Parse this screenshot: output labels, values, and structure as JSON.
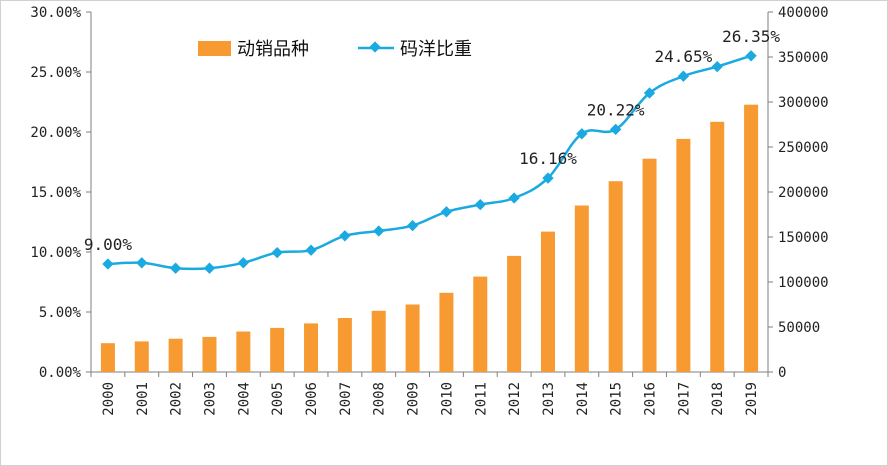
{
  "chart_data": {
    "type": "bar",
    "categories": [
      "2000",
      "2001",
      "2002",
      "2003",
      "2004",
      "2005",
      "2006",
      "2007",
      "2008",
      "2009",
      "2010",
      "2011",
      "2012",
      "2013",
      "2014",
      "2015",
      "2016",
      "2017",
      "2018",
      "2019"
    ],
    "series": [
      {
        "name": "动销品种",
        "type": "bar",
        "axis": "right",
        "color": "#F79A32",
        "values": [
          32000,
          34000,
          37000,
          39000,
          45000,
          49000,
          54000,
          60000,
          68000,
          75000,
          88000,
          106000,
          129000,
          156000,
          185000,
          212000,
          237000,
          259000,
          278000,
          297000
        ]
      },
      {
        "name": "码洋比重",
        "type": "line",
        "axis": "left",
        "color": "#1AA9E1",
        "values": [
          9.0,
          9.1,
          8.65,
          8.65,
          9.1,
          9.95,
          10.15,
          11.35,
          11.75,
          12.2,
          13.35,
          13.95,
          14.5,
          16.16,
          19.85,
          20.22,
          23.25,
          24.65,
          25.45,
          26.35
        ]
      }
    ],
    "y_left": {
      "ylim": [
        0,
        30
      ],
      "ticks": [
        "0.00%",
        "5.00%",
        "10.00%",
        "15.00%",
        "20.00%",
        "25.00%",
        "30.00%"
      ],
      "tick_values": [
        0,
        5,
        10,
        15,
        20,
        25,
        30
      ]
    },
    "y_right": {
      "ylim": [
        0,
        400000
      ],
      "ticks": [
        "0",
        "50000",
        "100000",
        "150000",
        "200000",
        "250000",
        "300000",
        "350000",
        "400000"
      ],
      "tick_values": [
        0,
        50000,
        100000,
        150000,
        200000,
        250000,
        300000,
        350000,
        400000
      ]
    },
    "annotations": [
      {
        "category": "2000",
        "value": 9.0,
        "text": "9.00%"
      },
      {
        "category": "2013",
        "value": 16.16,
        "text": "16.16%"
      },
      {
        "category": "2015",
        "value": 20.22,
        "text": "20.22%"
      },
      {
        "category": "2017",
        "value": 24.65,
        "text": "24.65%"
      },
      {
        "category": "2019",
        "value": 26.35,
        "text": "26.35%"
      }
    ],
    "legend": {
      "placement": "top-left",
      "entries": [
        "动销品种",
        "码洋比重"
      ]
    },
    "grid": false,
    "title": "",
    "xlabel": "",
    "ylabel": ""
  }
}
